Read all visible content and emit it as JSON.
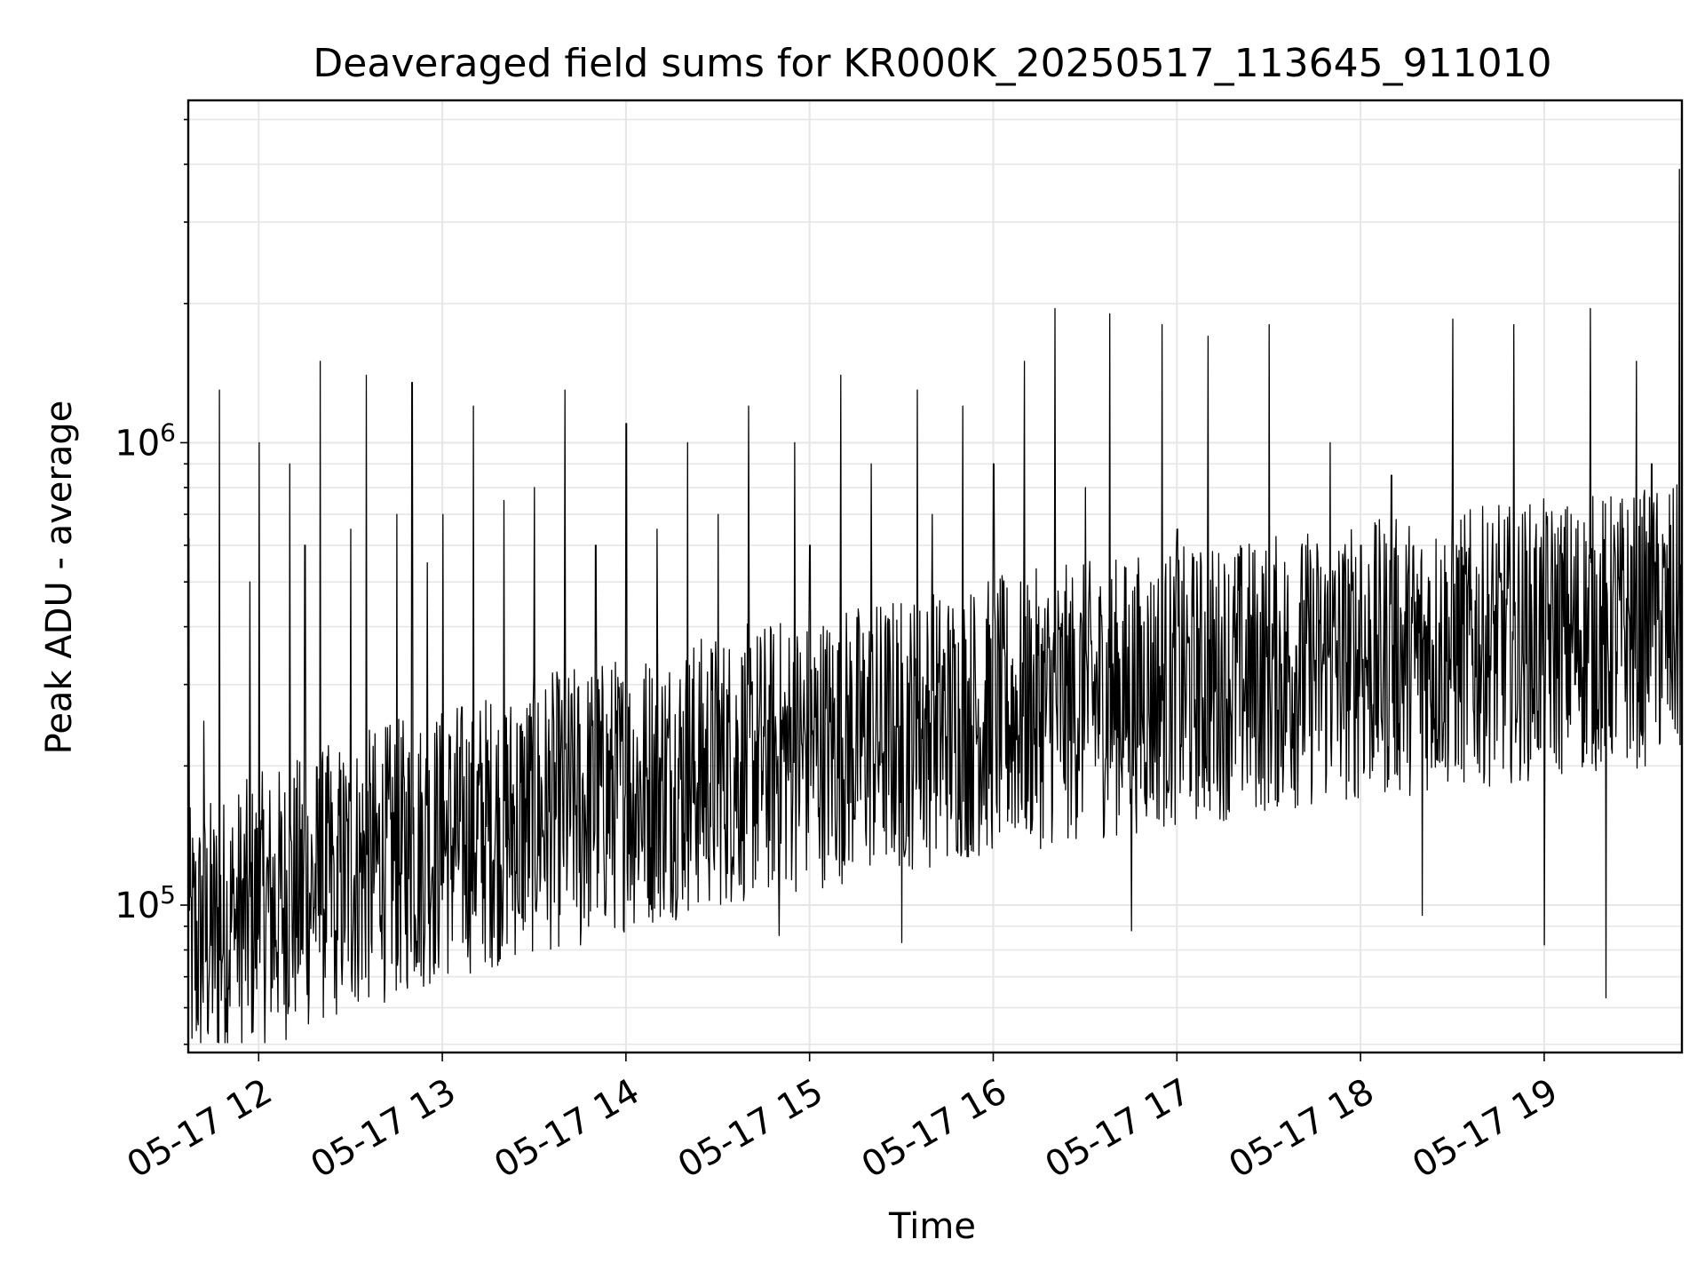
{
  "chart_data": {
    "type": "line",
    "title": "Deaveraged field sums for KR000K_20250517_113645_911010",
    "xlabel": "Time",
    "ylabel": "Peak ADU - average",
    "yscale": "log",
    "ylim": [
      48000,
      5500000
    ],
    "xlim": [
      "2025-05-17 11:37",
      "2025-05-17 19:45"
    ],
    "grid": true,
    "x_tick_labels": [
      "05-17 12",
      "05-17 13",
      "05-17 14",
      "05-17 15",
      "05-17 16",
      "05-17 17",
      "05-17 18",
      "05-17 19"
    ],
    "y_tick_labels": [
      {
        "base": "10",
        "exp": "5",
        "value": 100000
      },
      {
        "base": "10",
        "exp": "6",
        "value": 1000000
      }
    ],
    "series": [
      {
        "color": "#000000",
        "x": [
          "2025-05-17 11:37",
          "2025-05-17 11:42",
          "2025-05-17 11:47",
          "2025-05-17 11:52",
          "2025-05-17 11:57",
          "2025-05-17 12:00",
          "2025-05-17 12:05",
          "2025-05-17 12:10",
          "2025-05-17 12:15",
          "2025-05-17 12:20",
          "2025-05-17 12:25",
          "2025-05-17 12:30",
          "2025-05-17 12:35",
          "2025-05-17 12:40",
          "2025-05-17 12:45",
          "2025-05-17 12:50",
          "2025-05-17 12:55",
          "2025-05-17 13:00",
          "2025-05-17 13:10",
          "2025-05-17 13:20",
          "2025-05-17 13:25",
          "2025-05-17 13:30",
          "2025-05-17 13:40",
          "2025-05-17 13:45",
          "2025-05-17 13:50",
          "2025-05-17 14:00",
          "2025-05-17 14:10",
          "2025-05-17 14:20",
          "2025-05-17 14:30",
          "2025-05-17 14:40",
          "2025-05-17 14:50",
          "2025-05-17 14:55",
          "2025-05-17 15:00",
          "2025-05-17 15:10",
          "2025-05-17 15:20",
          "2025-05-17 15:30",
          "2025-05-17 15:35",
          "2025-05-17 15:40",
          "2025-05-17 15:50",
          "2025-05-17 16:00",
          "2025-05-17 16:10",
          "2025-05-17 16:20",
          "2025-05-17 16:30",
          "2025-05-17 16:38",
          "2025-05-17 16:45",
          "2025-05-17 16:55",
          "2025-05-17 17:00",
          "2025-05-17 17:10",
          "2025-05-17 17:20",
          "2025-05-17 17:30",
          "2025-05-17 17:40",
          "2025-05-17 17:50",
          "2025-05-17 18:00",
          "2025-05-17 18:10",
          "2025-05-17 18:20",
          "2025-05-17 18:30",
          "2025-05-17 18:40",
          "2025-05-17 18:50",
          "2025-05-17 19:00",
          "2025-05-17 19:05",
          "2025-05-17 19:10",
          "2025-05-17 19:15",
          "2025-05-17 19:20",
          "2025-05-17 19:25",
          "2025-05-17 19:30",
          "2025-05-17 19:35",
          "2025-05-17 19:40",
          "2025-05-17 19:44"
        ],
        "y": [
          620000,
          250000,
          1300000,
          80000,
          500000,
          1000000,
          69000,
          900000,
          600000,
          1500000,
          88000,
          650000,
          1400000,
          95000,
          700000,
          1350000,
          550000,
          700000,
          1200000,
          750000,
          96000,
          800000,
          1300000,
          82000,
          600000,
          1100000,
          650000,
          1000000,
          700000,
          1200000,
          86000,
          1000000,
          600000,
          1400000,
          900000,
          83000,
          1300000,
          700000,
          1200000,
          900000,
          1500000,
          1950000,
          800000,
          1900000,
          88000,
          1800000,
          650000,
          1700000,
          480000,
          1800000,
          450000,
          1000000,
          600000,
          850000,
          95000,
          1850000,
          480000,
          1800000,
          82000,
          600000,
          300000,
          1950000,
          63000,
          500000,
          1500000,
          900000,
          600000,
          3900000
        ],
        "note": "approximate envelope samples; dense noisy signal"
      }
    ]
  }
}
